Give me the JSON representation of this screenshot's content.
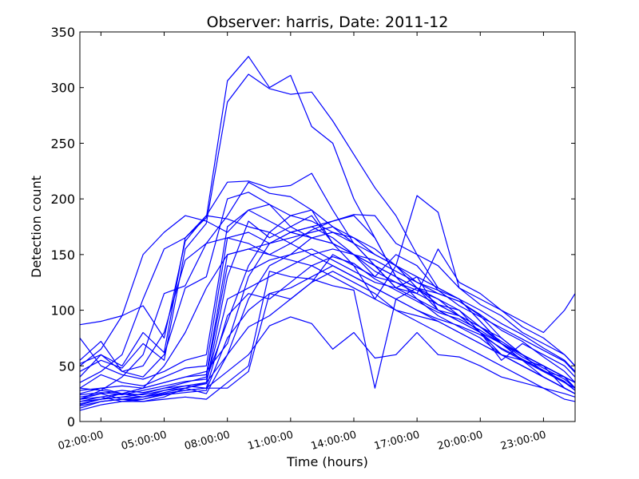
{
  "chart_data": {
    "type": "line",
    "title": "Observer: harris, Date: 2011-12",
    "xlabel": "Time (hours)",
    "ylabel": "Detection count",
    "ylim": [
      0,
      350
    ],
    "xlim": [
      1,
      24.5
    ],
    "y_ticks": [
      "0",
      "50",
      "100",
      "150",
      "200",
      "250",
      "300",
      "350"
    ],
    "x_ticks": [
      "02:00:00",
      "05:00:00",
      "08:00:00",
      "11:00:00",
      "14:00:00",
      "17:00:00",
      "20:00:00",
      "23:00:00"
    ],
    "x_tick_values": [
      2,
      5,
      8,
      11,
      14,
      17,
      20,
      23
    ],
    "line_color": "#0000ff",
    "grid": false,
    "x_hours": [
      1,
      2,
      3,
      4,
      5,
      6,
      7,
      8,
      9,
      10,
      11,
      12,
      13,
      14,
      15,
      16,
      17,
      18,
      19,
      20,
      21,
      22,
      23,
      24,
      24.5
    ],
    "series": [
      {
        "values": [
          52,
          60,
          50,
          80,
          62,
          165,
          183,
          306,
          328,
          300,
          311,
          265,
          250,
          200,
          165,
          130,
          120,
          105,
          100,
          80,
          60,
          55,
          50,
          30,
          25
        ]
      },
      {
        "values": [
          45,
          55,
          48,
          70,
          55,
          155,
          178,
          287,
          312,
          299,
          294,
          296,
          270,
          240,
          210,
          185,
          150,
          120,
          110,
          90,
          70,
          60,
          45,
          35,
          30
        ]
      },
      {
        "values": [
          87,
          90,
          95,
          104,
          75,
          162,
          185,
          215,
          216,
          210,
          212,
          223,
          190,
          160,
          140,
          120,
          130,
          100,
          95,
          80,
          55,
          70,
          60,
          50,
          40
        ]
      },
      {
        "values": [
          55,
          72,
          45,
          50,
          80,
          145,
          160,
          185,
          215,
          205,
          202,
          190,
          160,
          140,
          130,
          150,
          140,
          118,
          110,
          90,
          70,
          60,
          50,
          40,
          30
        ]
      },
      {
        "values": [
          40,
          60,
          45,
          40,
          60,
          120,
          130,
          200,
          206,
          195,
          185,
          180,
          170,
          165,
          155,
          140,
          125,
          115,
          108,
          95,
          75,
          60,
          50,
          40,
          35
        ]
      },
      {
        "values": [
          75,
          50,
          42,
          38,
          45,
          55,
          60,
          175,
          190,
          180,
          170,
          165,
          160,
          150,
          135,
          125,
          118,
          110,
          100,
          85,
          70,
          55,
          45,
          40,
          30
        ]
      },
      {
        "values": [
          30,
          42,
          35,
          32,
          40,
          48,
          50,
          165,
          170,
          160,
          165,
          170,
          175,
          165,
          150,
          140,
          120,
          100,
          90,
          80,
          65,
          55,
          40,
          30,
          25
        ]
      },
      {
        "values": [
          25,
          30,
          32,
          30,
          35,
          40,
          42,
          150,
          155,
          150,
          160,
          172,
          180,
          185,
          165,
          130,
          110,
          95,
          85,
          75,
          60,
          50,
          40,
          30,
          25
        ]
      },
      {
        "values": [
          20,
          25,
          28,
          26,
          30,
          35,
          40,
          140,
          135,
          145,
          150,
          165,
          170,
          160,
          140,
          120,
          110,
          100,
          90,
          80,
          70,
          55,
          45,
          35,
          28
        ]
      },
      {
        "values": [
          18,
          22,
          25,
          24,
          28,
          30,
          35,
          110,
          120,
          130,
          140,
          150,
          155,
          150,
          130,
          125,
          115,
          105,
          95,
          85,
          72,
          60,
          50,
          40,
          30
        ]
      },
      {
        "values": [
          15,
          20,
          22,
          22,
          25,
          28,
          30,
          95,
          115,
          110,
          125,
          140,
          148,
          142,
          128,
          118,
          108,
          98,
          92,
          82,
          70,
          58,
          48,
          38,
          30
        ]
      },
      {
        "values": [
          12,
          18,
          20,
          20,
          24,
          26,
          28,
          75,
          100,
          115,
          120,
          130,
          140,
          130,
          120,
          110,
          100,
          92,
          86,
          78,
          66,
          56,
          46,
          36,
          28
        ]
      },
      {
        "values": [
          22,
          25,
          20,
          18,
          22,
          30,
          25,
          60,
          85,
          95,
          110,
          125,
          135,
          125,
          115,
          100,
          95,
          90,
          80,
          70,
          60,
          50,
          40,
          30,
          25
        ]
      },
      {
        "values": [
          28,
          30,
          25,
          22,
          28,
          32,
          30,
          45,
          60,
          86,
          94,
          88,
          65,
          80,
          57,
          60,
          80,
          60,
          58,
          50,
          40,
          35,
          30,
          25,
          22
        ]
      },
      {
        "values": [
          20,
          22,
          18,
          18,
          20,
          22,
          20,
          35,
          50,
          135,
          130,
          128,
          122,
          118,
          30,
          110,
          120,
          115,
          108,
          96,
          82,
          72,
          58,
          45,
          35
        ]
      },
      {
        "values": [
          10,
          15,
          18,
          20,
          25,
          28,
          30,
          30,
          45,
          115,
          110,
          125,
          150,
          140,
          110,
          140,
          203,
          188,
          120,
          110,
          100,
          85,
          75,
          60,
          50
        ]
      },
      {
        "values": [
          16,
          20,
          22,
          25,
          30,
          32,
          35,
          60,
          110,
          140,
          150,
          155,
          145,
          135,
          125,
          120,
          115,
          155,
          125,
          115,
          100,
          90,
          80,
          100,
          115
        ]
      },
      {
        "values": [
          30,
          28,
          25,
          30,
          35,
          40,
          45,
          70,
          130,
          160,
          170,
          175,
          180,
          186,
          185,
          160,
          150,
          140,
          120,
          105,
          95,
          80,
          70,
          60,
          50
        ]
      },
      {
        "values": [
          24,
          26,
          24,
          28,
          32,
          36,
          38,
          90,
          140,
          170,
          185,
          190,
          175,
          160,
          150,
          140,
          130,
          120,
          110,
          100,
          88,
          78,
          66,
          55,
          45
        ]
      },
      {
        "values": [
          14,
          18,
          20,
          22,
          26,
          30,
          34,
          130,
          180,
          165,
          175,
          185,
          160,
          150,
          145,
          135,
          125,
          118,
          104,
          94,
          84,
          74,
          64,
          54,
          44
        ]
      },
      {
        "values": [
          50,
          65,
          95,
          150,
          170,
          185,
          180,
          170,
          190,
          195,
          175,
          165,
          160,
          150,
          140,
          130,
          120,
          105,
          95,
          85,
          75,
          60,
          50,
          40,
          30
        ]
      },
      {
        "values": [
          35,
          45,
          60,
          110,
          155,
          165,
          185,
          182,
          175,
          170,
          160,
          150,
          140,
          130,
          120,
          110,
          100,
          90,
          80,
          70,
          60,
          50,
          40,
          30,
          25
        ]
      },
      {
        "values": [
          20,
          28,
          40,
          60,
          115,
          122,
          160,
          165,
          160,
          150,
          145,
          140,
          130,
          120,
          110,
          100,
          90,
          80,
          70,
          60,
          50,
          40,
          30,
          20,
          18
        ]
      },
      {
        "values": [
          18,
          20,
          25,
          30,
          50,
          80,
          120,
          150,
          155,
          160,
          170,
          175,
          165,
          150,
          140,
          130,
          120,
          110,
          95,
          85,
          70,
          60,
          50,
          40,
          35
        ]
      }
    ]
  }
}
